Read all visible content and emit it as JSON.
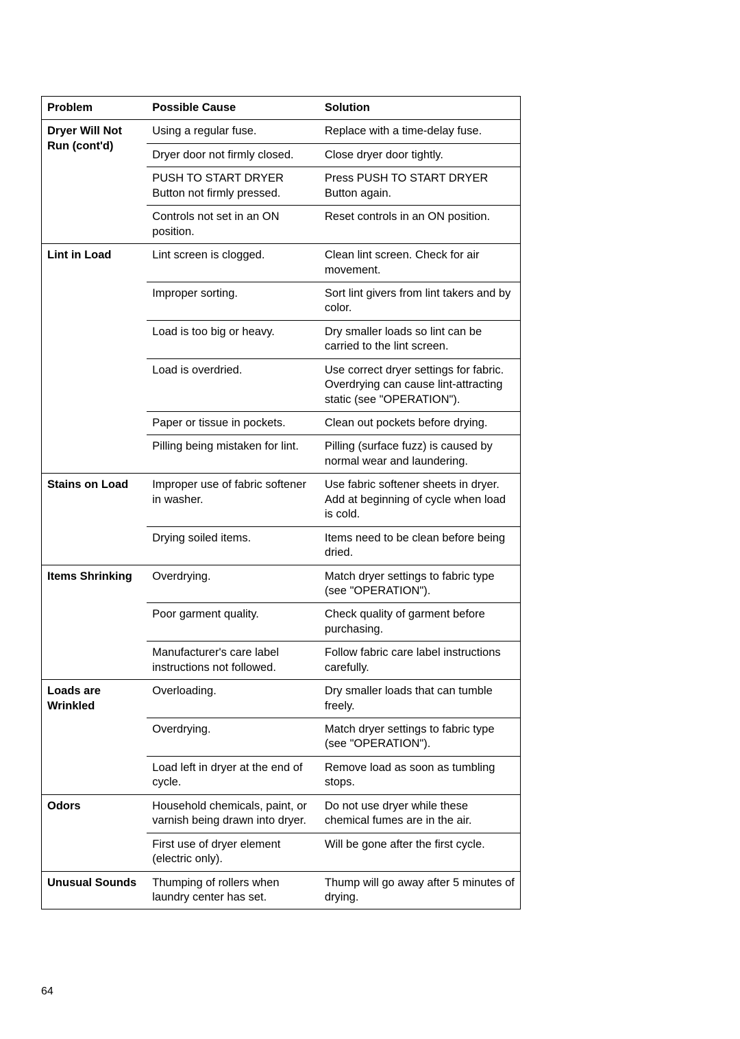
{
  "headers": {
    "problem": "Problem",
    "cause": "Possible Cause",
    "solution": "Solution"
  },
  "groups": [
    {
      "problem": "Dryer Will Not Run (cont'd)",
      "rows": [
        {
          "cause": "Using a regular fuse.",
          "solution": "Replace with a time-delay fuse."
        },
        {
          "cause": "Dryer door not firmly closed.",
          "solution": "Close dryer door tightly."
        },
        {
          "cause": "PUSH TO START DRYER Button not firmly pressed.",
          "solution": "Press PUSH TO START DRYER Button again."
        },
        {
          "cause": "Controls not set in an ON position.",
          "solution": "Reset controls in an ON position."
        }
      ]
    },
    {
      "problem": "Lint in Load",
      "rows": [
        {
          "cause": "Lint screen is clogged.",
          "solution": "Clean lint screen. Check for air movement."
        },
        {
          "cause": "Improper sorting.",
          "solution": "Sort lint givers from lint takers and by color."
        },
        {
          "cause": "Load is too big or heavy.",
          "solution": "Dry smaller loads so lint can be carried to the lint screen."
        },
        {
          "cause": "Load is overdried.",
          "solution": "Use correct dryer settings for fabric. Overdrying can cause lint-attracting static (see \"OPERATION\")."
        },
        {
          "cause": "Paper or tissue in pockets.",
          "solution": "Clean out pockets before drying."
        },
        {
          "cause": "Pilling being mistaken for lint.",
          "solution": "Pilling (surface fuzz) is caused by normal wear and laundering."
        }
      ]
    },
    {
      "problem": "Stains on Load",
      "rows": [
        {
          "cause": "Improper use of fabric softener in washer.",
          "solution": "Use fabric softener sheets in dryer. Add at beginning of cycle when load is cold."
        },
        {
          "cause": "Drying soiled items.",
          "solution": "Items need to be clean before being dried."
        }
      ]
    },
    {
      "problem": "Items Shrinking",
      "rows": [
        {
          "cause": "Overdrying.",
          "solution": "Match dryer settings to fabric type (see \"OPERATION\")."
        },
        {
          "cause": "Poor garment quality.",
          "solution": "Check quality of garment before purchasing."
        },
        {
          "cause": "Manufacturer's care label instructions not followed.",
          "solution": "Follow fabric care label instructions carefully."
        }
      ]
    },
    {
      "problem": "Loads are Wrinkled",
      "rows": [
        {
          "cause": "Overloading.",
          "solution": "Dry smaller loads that can tumble freely."
        },
        {
          "cause": "Overdrying.",
          "solution": "Match dryer settings to fabric type (see \"OPERATION\")."
        },
        {
          "cause": "Load left in dryer at the end of cycle.",
          "solution": "Remove load as soon as tumbling stops."
        }
      ]
    },
    {
      "problem": "Odors",
      "rows": [
        {
          "cause": "Household chemicals, paint, or varnish being drawn into dryer.",
          "solution": "Do not use dryer while these chemical fumes are in the air."
        },
        {
          "cause": "First use of dryer element (electric only).",
          "solution": "Will be gone after the first cycle."
        }
      ]
    },
    {
      "problem": "Unusual Sounds",
      "rows": [
        {
          "cause": "Thumping of rollers when laundry center has set.",
          "solution": "Thump will go away after 5 minutes of drying."
        }
      ]
    }
  ],
  "page_number": "64"
}
